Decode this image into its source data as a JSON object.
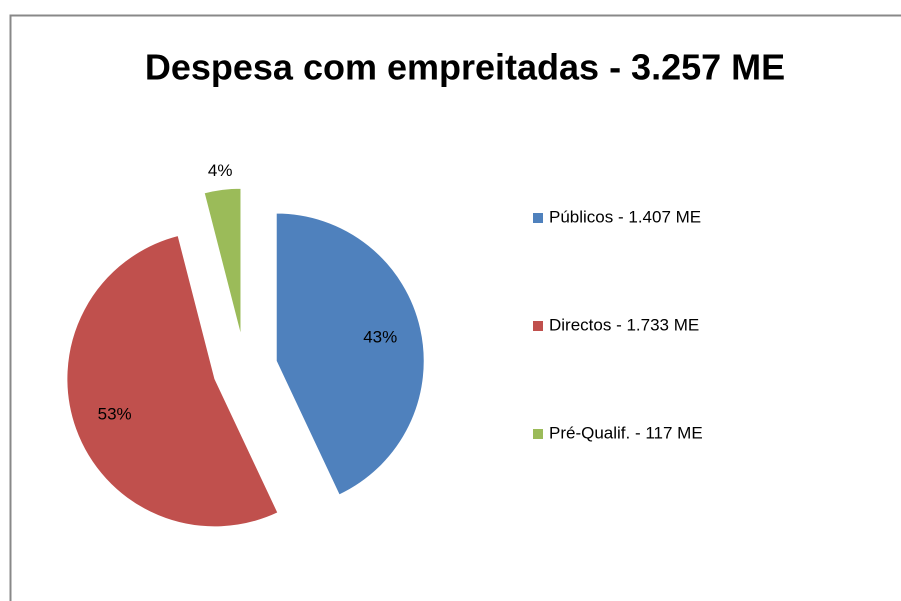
{
  "chart_data": {
    "type": "pie",
    "title": "Despesa com empreitadas - 3.257 ME",
    "categories": [
      "Públicos - 1.407 ME",
      "Directos - 1.733 ME",
      "Pré-Qualif. - 117 ME"
    ],
    "values": [
      43,
      53,
      4
    ],
    "value_labels": [
      "43%",
      "53%",
      "4%"
    ],
    "colors": [
      "#4f81bd",
      "#c0504d",
      "#9bbb59"
    ],
    "legend": "right"
  }
}
